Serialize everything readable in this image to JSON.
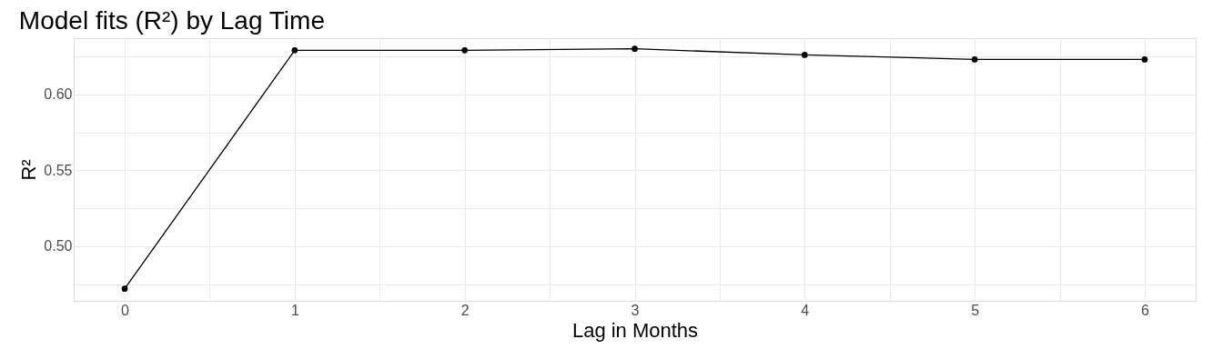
{
  "chart_data": {
    "type": "line",
    "title": "Model fits (R²) by Lag Time",
    "xlabel": "Lag in Months",
    "ylabel": "R²",
    "x": [
      0,
      1,
      2,
      3,
      4,
      5,
      6
    ],
    "series": [
      {
        "color": "#000000",
        "values": [
          0.472,
          0.629,
          0.629,
          0.63,
          0.626,
          0.623,
          0.623
        ]
      }
    ],
    "xlim": [
      -0.3,
      6.3
    ],
    "xticks": [
      0,
      {
        "value": 0.5,
        "label": null
      },
      1,
      {
        "value": 1.5,
        "label": null
      },
      2,
      {
        "value": 2.5,
        "label": null
      },
      3,
      {
        "value": 3.5,
        "label": null
      },
      4,
      {
        "value": 4.5,
        "label": null
      },
      5,
      {
        "value": 5.5,
        "label": null
      },
      6
    ],
    "ylim": [
      0.464,
      0.637
    ],
    "yticks": [
      {
        "value": 0.475,
        "label": null
      },
      {
        "value": 0.5,
        "label": "0.50"
      },
      {
        "value": 0.525,
        "label": null
      },
      0.55,
      {
        "value": 0.575,
        "label": null
      },
      {
        "value": 0.6,
        "label": "0.60"
      },
      {
        "value": 0.625,
        "label": null
      }
    ],
    "grid": true,
    "marker": "circle",
    "line_style": "solid"
  }
}
